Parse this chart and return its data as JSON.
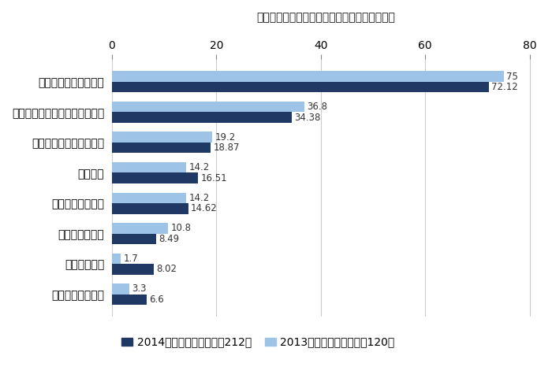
{
  "title": "営業利益見込み「改善」理由内訳（複数回答）",
  "categories": [
    "現地市場での売上増加",
    "生産効率の改善（製造業のみ）",
    "輸出拡大による売上増加",
    "為替変動",
    "調達コストの削減",
    "販売効率の改善",
    "人件費の削減",
    "その他支出の削減"
  ],
  "values_2014": [
    72.12,
    34.38,
    18.87,
    16.51,
    14.62,
    8.49,
    8.02,
    6.6
  ],
  "values_2013": [
    75.0,
    36.8,
    19.2,
    14.2,
    14.2,
    10.8,
    1.7,
    3.3
  ],
  "labels_2014": [
    "72.12",
    "34.38",
    "18.87",
    "16.51",
    "14.62",
    "8.49",
    "8.02",
    "6.6"
  ],
  "labels_2013": [
    "75",
    "36.8",
    "19.2",
    "14.2",
    "14.2",
    "10.8",
    "1.7",
    "3.3"
  ],
  "color_2014": "#1f3864",
  "color_2013": "#9dc3e6",
  "legend_2014": "2014年調査（有効回答数212）",
  "legend_2013": "2013年調査（有効回答数120）",
  "xlim": [
    0,
    82
  ],
  "xticks": [
    0,
    20,
    40,
    60,
    80
  ],
  "xtick_labels": [
    "0",
    "20",
    "40",
    "60",
    "80"
  ],
  "bar_height": 0.35,
  "label_fontsize": 8.5,
  "title_fontsize": 15,
  "tick_fontsize": 10,
  "background_color": "#ffffff",
  "grid_color": "#cccccc"
}
